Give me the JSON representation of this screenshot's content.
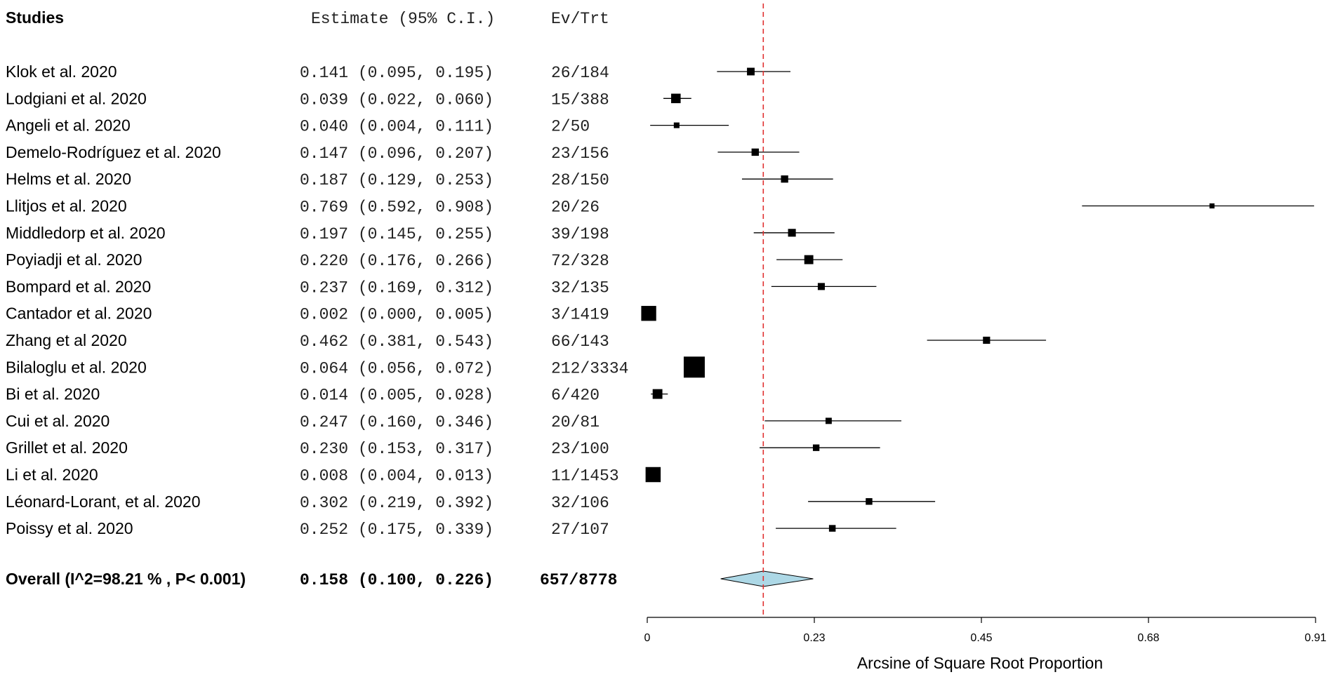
{
  "chart_data": {
    "type": "forest",
    "headers": {
      "studies": "Studies",
      "estimate": "Estimate (95% C.I.)",
      "events": "Ev/Trt"
    },
    "studies": [
      {
        "name": "Klok et al. 2020",
        "text": "0.141 (0.095, 0.195)",
        "ev": "26/184",
        "est": 0.141,
        "lo": 0.095,
        "hi": 0.195,
        "n": 184
      },
      {
        "name": "Lodgiani et al. 2020",
        "text": "0.039 (0.022, 0.060)",
        "ev": "15/388",
        "est": 0.039,
        "lo": 0.022,
        "hi": 0.06,
        "n": 388
      },
      {
        "name": "Angeli et al. 2020",
        "text": "0.040 (0.004, 0.111)",
        "ev": "2/50",
        "est": 0.04,
        "lo": 0.004,
        "hi": 0.111,
        "n": 50
      },
      {
        "name": "Demelo-Rodríguez et al. 2020",
        "text": "0.147 (0.096, 0.207)",
        "ev": "23/156",
        "est": 0.147,
        "lo": 0.096,
        "hi": 0.207,
        "n": 156
      },
      {
        "name": "Helms et al. 2020",
        "text": "0.187 (0.129, 0.253)",
        "ev": "28/150",
        "est": 0.187,
        "lo": 0.129,
        "hi": 0.253,
        "n": 150
      },
      {
        "name": "Llitjos et al. 2020",
        "text": "0.769 (0.592, 0.908)",
        "ev": "20/26",
        "est": 0.769,
        "lo": 0.592,
        "hi": 0.908,
        "n": 26
      },
      {
        "name": "Middledorp et al. 2020",
        "text": "0.197 (0.145, 0.255)",
        "ev": "39/198",
        "est": 0.197,
        "lo": 0.145,
        "hi": 0.255,
        "n": 198
      },
      {
        "name": "Poyiadji et al. 2020",
        "text": "0.220 (0.176, 0.266)",
        "ev": "72/328",
        "est": 0.22,
        "lo": 0.176,
        "hi": 0.266,
        "n": 328
      },
      {
        "name": "Bompard et al. 2020",
        "text": "0.237 (0.169, 0.312)",
        "ev": "32/135",
        "est": 0.237,
        "lo": 0.169,
        "hi": 0.312,
        "n": 135
      },
      {
        "name": "Cantador et al. 2020",
        "text": "0.002 (0.000, 0.005)",
        "ev": "3/1419",
        "est": 0.002,
        "lo": 0.0,
        "hi": 0.005,
        "n": 1419
      },
      {
        "name": "Zhang et al 2020",
        "text": "0.462 (0.381, 0.543)",
        "ev": "66/143",
        "est": 0.462,
        "lo": 0.381,
        "hi": 0.543,
        "n": 143
      },
      {
        "name": "Bilaloglu et al. 2020",
        "text": "0.064 (0.056, 0.072)",
        "ev": "212/3334",
        "est": 0.064,
        "lo": 0.056,
        "hi": 0.072,
        "n": 3334
      },
      {
        "name": "Bi et al.  2020",
        "text": "0.014 (0.005, 0.028)",
        "ev": "6/420",
        "est": 0.014,
        "lo": 0.005,
        "hi": 0.028,
        "n": 420
      },
      {
        "name": "Cui et al.  2020",
        "text": "0.247 (0.160, 0.346)",
        "ev": "20/81",
        "est": 0.247,
        "lo": 0.16,
        "hi": 0.346,
        "n": 81
      },
      {
        "name": "Grillet et al.  2020",
        "text": "0.230 (0.153, 0.317)",
        "ev": "23/100",
        "est": 0.23,
        "lo": 0.153,
        "hi": 0.317,
        "n": 100
      },
      {
        "name": "Li et al. 2020",
        "text": "0.008 (0.004, 0.013)",
        "ev": "11/1453",
        "est": 0.008,
        "lo": 0.004,
        "hi": 0.013,
        "n": 1453
      },
      {
        "name": "Léonard-Lorant, et al.  2020",
        "text": "0.302 (0.219, 0.392)",
        "ev": "32/106",
        "est": 0.302,
        "lo": 0.219,
        "hi": 0.392,
        "n": 106
      },
      {
        "name": "Poissy et al.  2020",
        "text": "0.252 (0.175, 0.339)",
        "ev": "27/107",
        "est": 0.252,
        "lo": 0.175,
        "hi": 0.339,
        "n": 107
      }
    ],
    "overall": {
      "label": "Overall (I^2=98.21 % , P< 0.001)",
      "text": "0.158 (0.100, 0.226)",
      "ev": "657/8778",
      "est": 0.158,
      "lo": 0.1,
      "hi": 0.226
    },
    "x_axis": {
      "title": "Arcsine of Square Root Proportion",
      "ticks": [
        "0",
        "0.23",
        "0.45",
        "0.68",
        "0.91"
      ],
      "tick_values": [
        0,
        0.2275,
        0.455,
        0.6825,
        0.91
      ],
      "xlim": [
        0,
        0.91
      ]
    },
    "colors": {
      "reference_line": "#e03030",
      "diamond_fill": "#add8e6",
      "marker": "#000000"
    }
  }
}
